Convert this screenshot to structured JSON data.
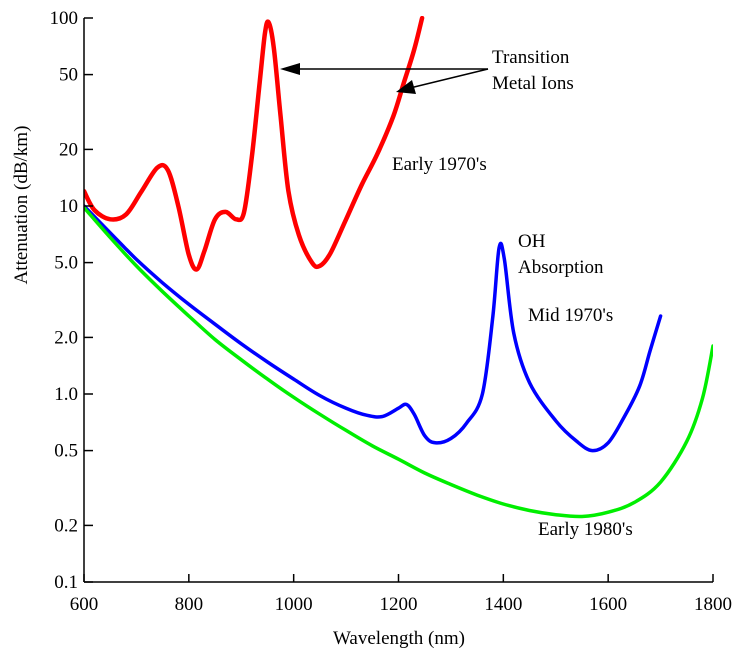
{
  "chart_data": {
    "type": "line",
    "title": "",
    "xlabel": "Wavelength (nm)",
    "ylabel": "Attenuation (dB/km)",
    "xlim": [
      600,
      1800
    ],
    "ylim": [
      0.1,
      100
    ],
    "yscale": "log",
    "grid": false,
    "x_ticks": [
      600,
      800,
      1000,
      1200,
      1400,
      1600,
      1800
    ],
    "x_tick_labels": [
      "600",
      "800",
      "1000",
      "1200",
      "1400",
      "1600",
      "1800"
    ],
    "y_ticks": [
      0.1,
      0.2,
      0.5,
      1.0,
      2.0,
      5.0,
      10,
      20,
      50,
      100
    ],
    "y_tick_labels": [
      "0.1",
      "0.2",
      "0.5",
      "1.0",
      "2.0",
      "5.0",
      "10",
      "20",
      "50",
      "100"
    ],
    "series": [
      {
        "name": "Early 1970's",
        "color": "#ff0000",
        "points": [
          [
            600,
            12
          ],
          [
            620,
            9.5
          ],
          [
            650,
            8.5
          ],
          [
            680,
            9
          ],
          [
            710,
            12
          ],
          [
            740,
            16
          ],
          [
            760,
            15.5
          ],
          [
            780,
            10
          ],
          [
            800,
            5.5
          ],
          [
            815,
            4.6
          ],
          [
            830,
            5.8
          ],
          [
            850,
            8.5
          ],
          [
            870,
            9.3
          ],
          [
            890,
            8.5
          ],
          [
            905,
            9.2
          ],
          [
            920,
            18
          ],
          [
            935,
            45
          ],
          [
            945,
            82
          ],
          [
            952,
            95
          ],
          [
            962,
            70
          ],
          [
            975,
            30
          ],
          [
            990,
            12
          ],
          [
            1010,
            7
          ],
          [
            1035,
            5
          ],
          [
            1050,
            4.8
          ],
          [
            1070,
            5.6
          ],
          [
            1100,
            8.5
          ],
          [
            1130,
            13
          ],
          [
            1160,
            19
          ],
          [
            1190,
            30
          ],
          [
            1210,
            45
          ],
          [
            1230,
            68
          ],
          [
            1245,
            100
          ]
        ]
      },
      {
        "name": "Mid 1970's",
        "color": "#0000ff",
        "points": [
          [
            600,
            10
          ],
          [
            650,
            7.2
          ],
          [
            700,
            5.2
          ],
          [
            750,
            3.9
          ],
          [
            800,
            3.0
          ],
          [
            850,
            2.35
          ],
          [
            900,
            1.85
          ],
          [
            950,
            1.48
          ],
          [
            1000,
            1.2
          ],
          [
            1050,
            0.98
          ],
          [
            1100,
            0.84
          ],
          [
            1140,
            0.77
          ],
          [
            1170,
            0.76
          ],
          [
            1200,
            0.84
          ],
          [
            1215,
            0.88
          ],
          [
            1230,
            0.78
          ],
          [
            1250,
            0.6
          ],
          [
            1270,
            0.55
          ],
          [
            1300,
            0.58
          ],
          [
            1330,
            0.7
          ],
          [
            1360,
            1.0
          ],
          [
            1380,
            2.6
          ],
          [
            1392,
            6.0
          ],
          [
            1402,
            5.2
          ],
          [
            1420,
            2.1
          ],
          [
            1450,
            1.15
          ],
          [
            1500,
            0.72
          ],
          [
            1540,
            0.56
          ],
          [
            1570,
            0.5
          ],
          [
            1600,
            0.55
          ],
          [
            1630,
            0.75
          ],
          [
            1660,
            1.1
          ],
          [
            1680,
            1.7
          ],
          [
            1700,
            2.6
          ]
        ]
      },
      {
        "name": "Early 1980's",
        "color": "#00ee00",
        "points": [
          [
            600,
            9.8
          ],
          [
            650,
            6.8
          ],
          [
            700,
            4.8
          ],
          [
            750,
            3.5
          ],
          [
            800,
            2.6
          ],
          [
            850,
            1.95
          ],
          [
            900,
            1.52
          ],
          [
            950,
            1.2
          ],
          [
            1000,
            0.96
          ],
          [
            1050,
            0.78
          ],
          [
            1100,
            0.64
          ],
          [
            1150,
            0.53
          ],
          [
            1200,
            0.45
          ],
          [
            1250,
            0.38
          ],
          [
            1300,
            0.33
          ],
          [
            1350,
            0.29
          ],
          [
            1400,
            0.26
          ],
          [
            1450,
            0.24
          ],
          [
            1500,
            0.228
          ],
          [
            1550,
            0.223
          ],
          [
            1600,
            0.235
          ],
          [
            1650,
            0.265
          ],
          [
            1700,
            0.34
          ],
          [
            1750,
            0.56
          ],
          [
            1780,
            0.95
          ],
          [
            1800,
            1.8
          ]
        ]
      }
    ],
    "annotations": {
      "transition_line1": "Transition",
      "transition_line2": "Metal Ions",
      "early_1970s": "Early 1970's",
      "oh_line1": "OH",
      "oh_line2": "Absorption",
      "mid_1970s": "Mid 1970's",
      "early_1980s": "Early 1980's"
    }
  }
}
